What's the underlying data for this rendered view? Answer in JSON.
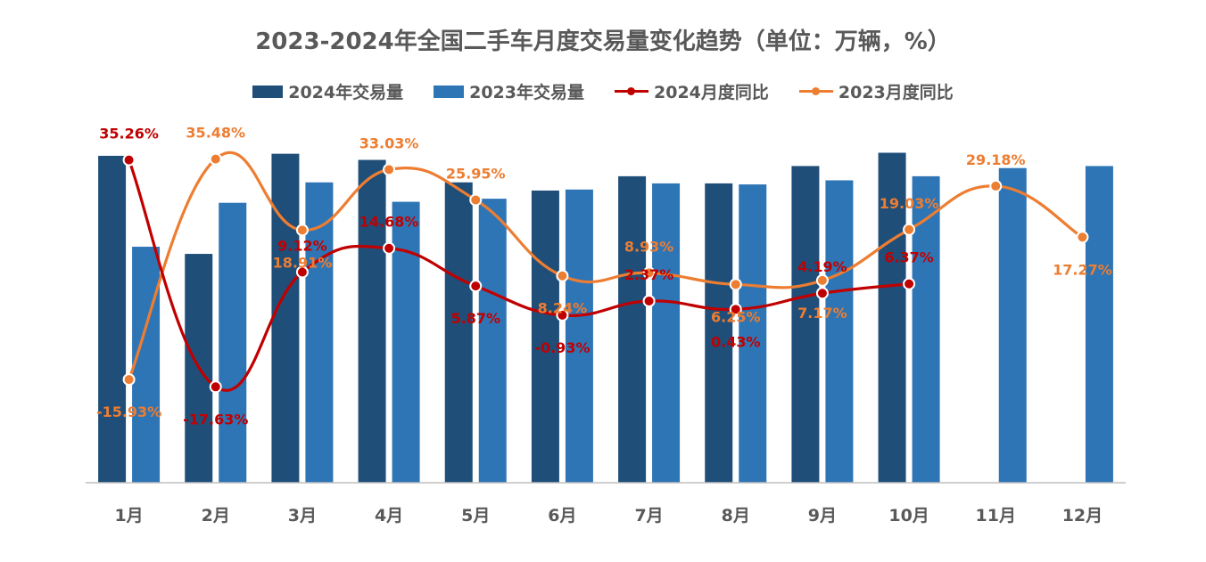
{
  "title": "2023-2024年全国二手车月度交易量变化趋势（单位：万辆，%）",
  "colors": {
    "bar2024": "#1F4E79",
    "bar2023": "#2E75B6",
    "line2024": "#C00000",
    "line2023": "#ED7D31",
    "axis": "#BFBFBF",
    "text": "#595959"
  },
  "legend": {
    "bar2024": "2024年交易量",
    "bar2023": "2023年交易量",
    "line2024": "2024月度同比",
    "line2023": "2023月度同比"
  },
  "chart_data": {
    "type": "bar",
    "title": "2023-2024年全国二手车月度交易量变化趋势（单位：万辆，%）",
    "categories": [
      "1月",
      "2月",
      "3月",
      "4月",
      "5月",
      "6月",
      "7月",
      "8月",
      "9月",
      "10月",
      "11月",
      "12月"
    ],
    "series": [
      {
        "name": "2024年交易量",
        "type": "bar",
        "axis": "left",
        "values": [
          160.0,
          112.0,
          161.0,
          158.0,
          147.0,
          143.0,
          150.0,
          146.5,
          155.0,
          161.5,
          null,
          null
        ]
      },
      {
        "name": "2023年交易量",
        "type": "bar",
        "axis": "left",
        "values": [
          115.5,
          137.0,
          147.0,
          137.5,
          139.0,
          143.5,
          146.5,
          146.0,
          148.0,
          150.0,
          154.0,
          155.0
        ]
      },
      {
        "name": "2024月度同比",
        "type": "line",
        "axis": "right",
        "values": [
          35.26,
          -17.63,
          9.12,
          14.68,
          5.87,
          -0.93,
          2.37,
          0.43,
          4.19,
          6.37,
          null,
          null
        ],
        "labels": [
          "35.26%",
          "-17.63%",
          "9.12%",
          "14.68%",
          "5.87%",
          "-0.93%",
          "2.37%",
          "0.43%",
          "4.19%",
          "6.37%",
          "",
          ""
        ]
      },
      {
        "name": "2023月度同比",
        "type": "line",
        "axis": "right",
        "values": [
          -15.93,
          35.48,
          18.91,
          33.03,
          25.95,
          8.24,
          8.93,
          6.25,
          7.17,
          19.03,
          29.18,
          17.27
        ],
        "labels": [
          "-15.93%",
          "35.48%",
          "18.91%",
          "33.03%",
          "25.95%",
          "8.24%",
          "8.93%",
          "6.25%",
          "7.17%",
          "19.03%",
          "29.18%",
          "17.27%"
        ]
      }
    ],
    "ylim_left": [
      0,
      170
    ],
    "ylim_right": [
      -40,
      41
    ],
    "grid": false,
    "legend_position": "top"
  }
}
